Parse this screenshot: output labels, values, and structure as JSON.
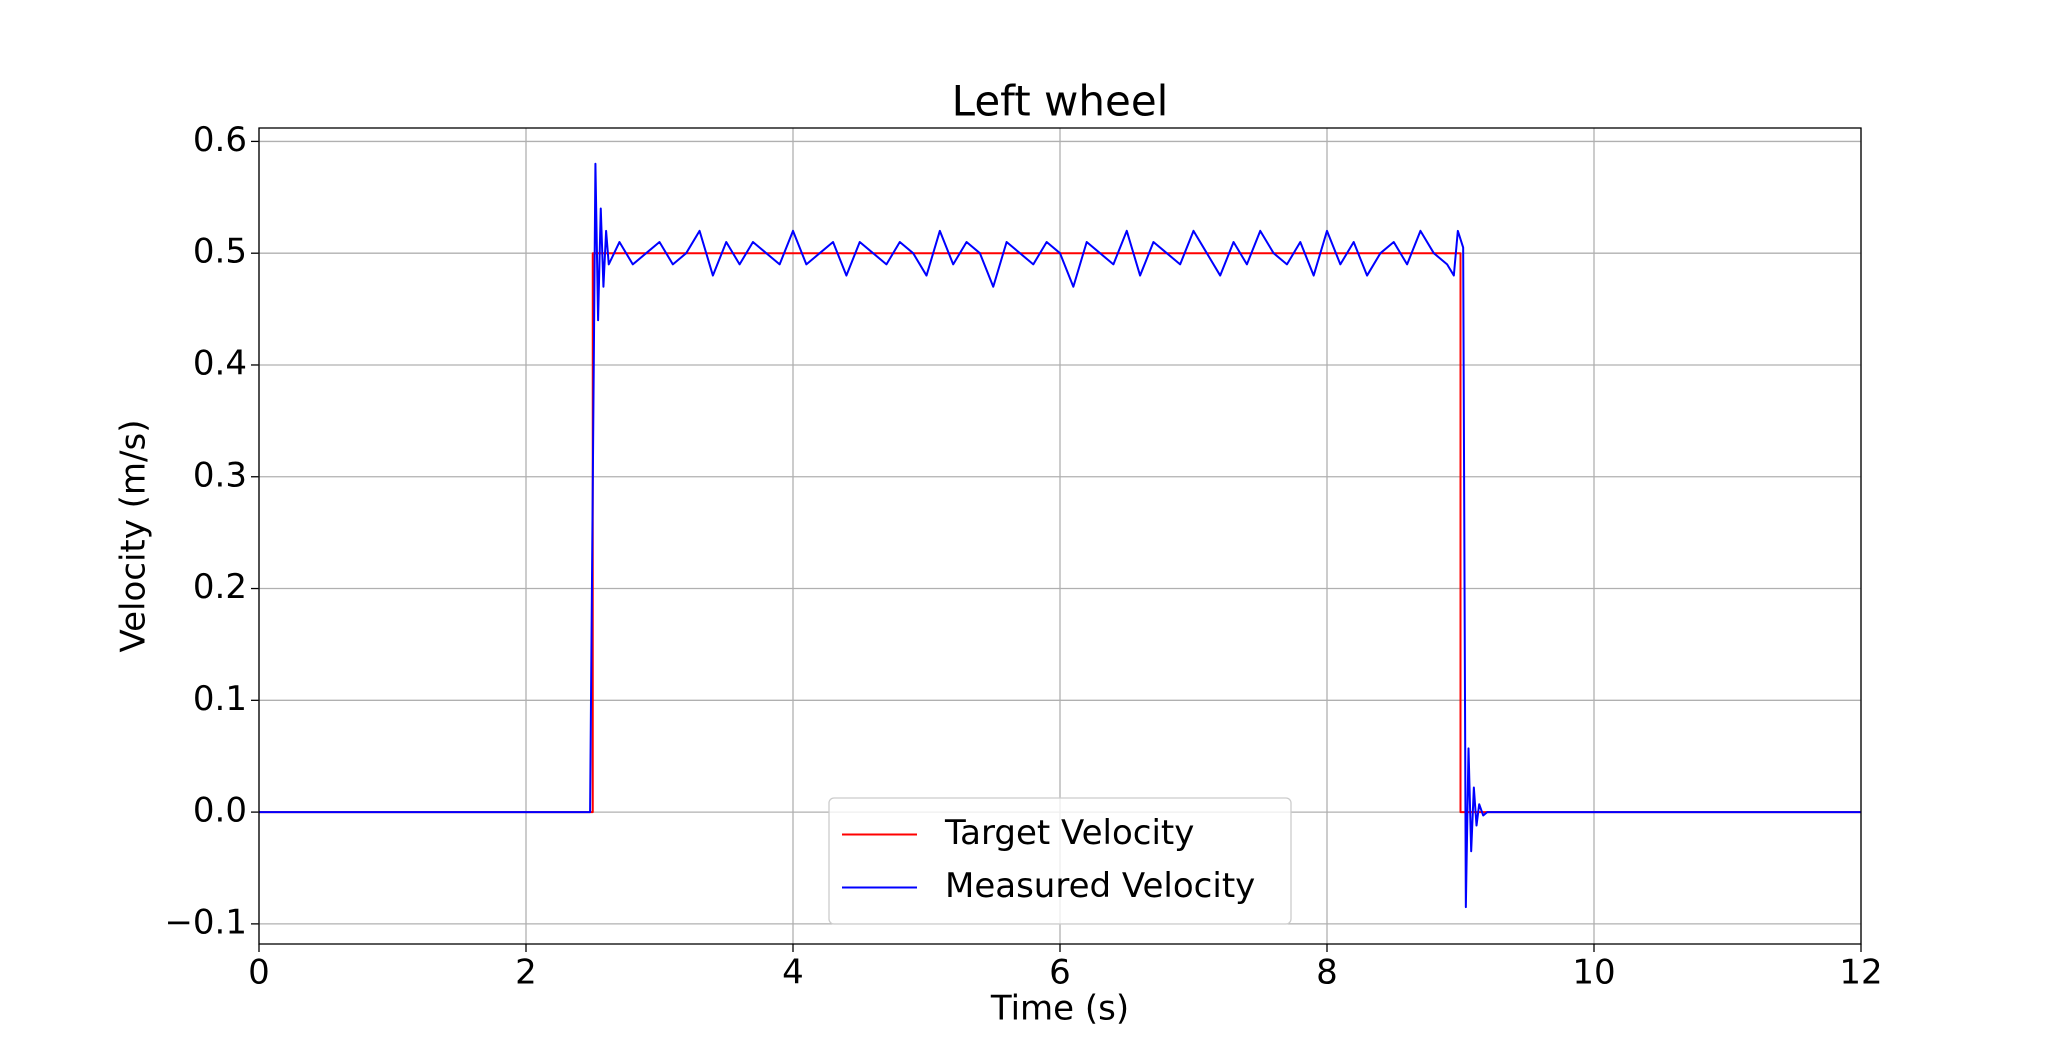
{
  "chart_data": {
    "type": "line",
    "title": "Left wheel",
    "xlabel": "Time (s)",
    "ylabel": "Velocity (m/s)",
    "xlim": [
      0,
      12
    ],
    "ylim": [
      -0.118,
      0.612
    ],
    "xticks": [
      0,
      2,
      4,
      6,
      8,
      10,
      12
    ],
    "yticks": [
      {
        "value": -0.1,
        "label": "−0.1"
      },
      {
        "value": 0,
        "label": "0.0"
      },
      0.1,
      0.2,
      0.3,
      0.4,
      0.5,
      0.6
    ],
    "grid": true,
    "legend": "lower center",
    "series": [
      {
        "name": "Target Velocity",
        "color": "#ff0000",
        "x": [
          0,
          2.5,
          2.5,
          9.0,
          9.0,
          12
        ],
        "values": [
          0,
          0,
          0.5,
          0.5,
          0,
          0
        ]
      },
      {
        "name": "Measured Velocity",
        "color": "#0000ff",
        "x": [
          0,
          2.48,
          2.52,
          2.54,
          2.56,
          2.58,
          2.6,
          2.62,
          2.66,
          2.7,
          2.8,
          2.9,
          3.0,
          3.1,
          3.2,
          3.3,
          3.4,
          3.5,
          3.6,
          3.7,
          3.8,
          3.9,
          4.0,
          4.1,
          4.2,
          4.3,
          4.4,
          4.5,
          4.6,
          4.7,
          4.8,
          4.9,
          5.0,
          5.1,
          5.2,
          5.3,
          5.4,
          5.5,
          5.6,
          5.7,
          5.8,
          5.9,
          6.0,
          6.1,
          6.2,
          6.3,
          6.4,
          6.5,
          6.6,
          6.7,
          6.8,
          6.9,
          7.0,
          7.1,
          7.2,
          7.3,
          7.4,
          7.5,
          7.6,
          7.7,
          7.8,
          7.9,
          8.0,
          8.1,
          8.2,
          8.3,
          8.4,
          8.5,
          8.6,
          8.7,
          8.8,
          8.9,
          8.95,
          8.98,
          9.02,
          9.04,
          9.06,
          9.08,
          9.1,
          9.12,
          9.14,
          9.17,
          9.2,
          12
        ],
        "values": [
          0,
          0,
          0.58,
          0.44,
          0.54,
          0.47,
          0.52,
          0.49,
          0.5,
          0.51,
          0.49,
          0.5,
          0.51,
          0.49,
          0.5,
          0.52,
          0.48,
          0.51,
          0.49,
          0.51,
          0.5,
          0.49,
          0.52,
          0.49,
          0.5,
          0.51,
          0.48,
          0.51,
          0.5,
          0.49,
          0.51,
          0.5,
          0.48,
          0.52,
          0.49,
          0.51,
          0.5,
          0.47,
          0.51,
          0.5,
          0.49,
          0.51,
          0.5,
          0.47,
          0.51,
          0.5,
          0.49,
          0.52,
          0.48,
          0.51,
          0.5,
          0.49,
          0.52,
          0.5,
          0.48,
          0.51,
          0.49,
          0.52,
          0.5,
          0.49,
          0.51,
          0.48,
          0.52,
          0.49,
          0.51,
          0.48,
          0.5,
          0.51,
          0.49,
          0.52,
          0.5,
          0.49,
          0.48,
          0.52,
          0.505,
          -0.085,
          0.057,
          -0.035,
          0.022,
          -0.012,
          0.007,
          -0.003,
          0,
          0
        ]
      }
    ]
  }
}
